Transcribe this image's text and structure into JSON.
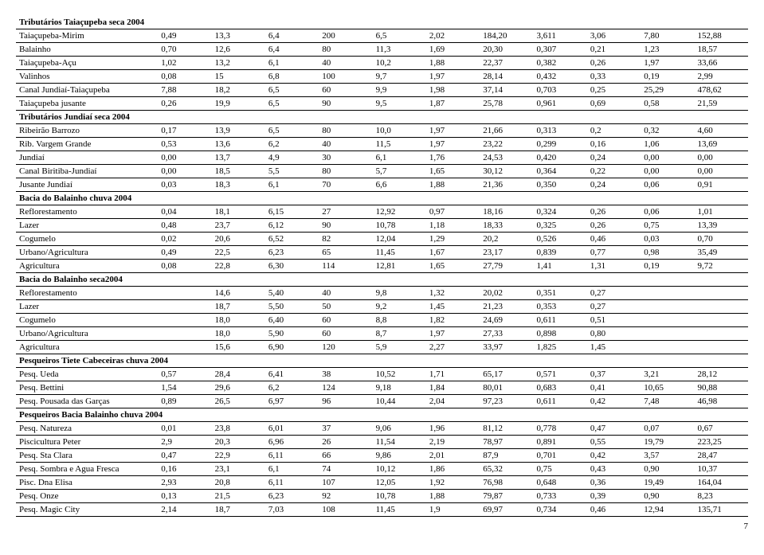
{
  "page_number": "7",
  "sections": [
    {
      "title": "Tributários Taiaçupeba seca 2004",
      "header_class": "section-header",
      "rows": [
        [
          "Taiaçupeba-Mirim",
          "0,49",
          "13,3",
          "6,4",
          "200",
          "6,5",
          "2,02",
          "184,20",
          "3,611",
          "3,06",
          "7,80",
          "152,88"
        ],
        [
          "Balainho",
          "0,70",
          "12,6",
          "6,4",
          "80",
          "11,3",
          "1,69",
          "20,30",
          "0,307",
          "0,21",
          "1,23",
          "18,57"
        ],
        [
          "Taiaçupeba-Açu",
          "1,02",
          "13,2",
          "6,1",
          "40",
          "10,2",
          "1,88",
          "22,37",
          "0,382",
          "0,26",
          "1,97",
          "33,66"
        ],
        [
          "Valinhos",
          "0,08",
          "15",
          "6,8",
          "100",
          "9,7",
          "1,97",
          "28,14",
          "0,432",
          "0,33",
          "0,19",
          "2,99"
        ],
        [
          "Canal Jundiaí-Taiaçupeba",
          "7,88",
          "18,2",
          "6,5",
          "60",
          "9,9",
          "1,98",
          "37,14",
          "0,703",
          "0,25",
          "25,29",
          "478,62"
        ],
        [
          "Taiaçupeba jusante",
          "0,26",
          "19,9",
          "6,5",
          "90",
          "9,5",
          "1,87",
          "25,78",
          "0,961",
          "0,69",
          "0,58",
          "21,59"
        ]
      ]
    },
    {
      "title": "Tributários Jundiaí seca 2004",
      "header_class": "section-header-top",
      "rows": [
        [
          "Ribeirão Barrozo",
          "0,17",
          "13,9",
          "6,5",
          "80",
          "10,0",
          "1,97",
          "21,66",
          "0,313",
          "0,2",
          "0,32",
          "4,60"
        ],
        [
          "Rib. Vargem Grande",
          "0,53",
          "13,6",
          "6,2",
          "40",
          "11,5",
          "1,97",
          "23,22",
          "0,299",
          "0,16",
          "1,06",
          "13,69"
        ],
        [
          "Jundiaí",
          "0,00",
          "13,7",
          "4,9",
          "30",
          "6,1",
          "1,76",
          "24,53",
          "0,420",
          "0,24",
          "0,00",
          "0,00"
        ],
        [
          "Canal Biritiba-Jundiaí",
          "0,00",
          "18,5",
          "5,5",
          "80",
          "5,7",
          "1,65",
          "30,12",
          "0,364",
          "0,22",
          "0,00",
          "0,00"
        ],
        [
          "Jusante Jundiaí",
          "0,03",
          "18,3",
          "6,1",
          "70",
          "6,6",
          "1,88",
          "21,36",
          "0,350",
          "0,24",
          "0,06",
          "0,91"
        ]
      ]
    },
    {
      "title": "Bacia do Balainho chuva 2004",
      "header_class": "section-header-top",
      "rows": [
        [
          "Reflorestamento",
          "0,04",
          "18,1",
          "6,15",
          "27",
          "12,92",
          "0,97",
          "18,16",
          "0,324",
          "0,26",
          "0,06",
          "1,01"
        ],
        [
          "Lazer",
          "0,48",
          "23,7",
          "6,12",
          "90",
          "10,78",
          "1,18",
          "18,33",
          "0,325",
          "0,26",
          "0,75",
          "13,39"
        ],
        [
          "Cogumelo",
          "0,02",
          "20,6",
          "6,52",
          "82",
          "12,04",
          "1,29",
          "20,2",
          "0,526",
          "0,46",
          "0,03",
          "0,70"
        ],
        [
          "Urbano/Agricultura",
          "0,49",
          "22,5",
          "6,23",
          "65",
          "11,45",
          "1,67",
          "23,17",
          "0,839",
          "0,77",
          "0,98",
          "35,49"
        ],
        [
          "Agricultura",
          "0,08",
          "22,8",
          "6,30",
          "114",
          "12,81",
          "1,65",
          "27,79",
          "1,41",
          "1,31",
          "0,19",
          "9,72"
        ]
      ]
    },
    {
      "title": "Bacia do Balainho seca2004",
      "header_class": "section-header-top",
      "rows": [
        [
          "Reflorestamento",
          "",
          "14,6",
          "5,40",
          "40",
          "9,8",
          "1,32",
          "20,02",
          "0,351",
          "0,27",
          "",
          ""
        ],
        [
          "Lazer",
          "",
          "18,7",
          "5,50",
          "50",
          "9,2",
          "1,45",
          "21,23",
          "0,353",
          "0,27",
          "",
          ""
        ],
        [
          "Cogumelo",
          "",
          "18,0",
          "6,40",
          "60",
          "8,8",
          "1,82",
          "24,69",
          "0,611",
          "0,51",
          "",
          ""
        ],
        [
          "Urbano/Agricultura",
          "",
          "18,0",
          "5,90",
          "60",
          "8,7",
          "1,97",
          "27,33",
          "0,898",
          "0,80",
          "",
          ""
        ],
        [
          "Agricultura",
          "",
          "15,6",
          "6,90",
          "120",
          "5,9",
          "2,27",
          "33,97",
          "1,825",
          "1,45",
          "",
          ""
        ]
      ]
    },
    {
      "title": "Pesqueiros Tiete Cabeceiras chuva 2004",
      "header_class": "section-header-top",
      "rows": [
        [
          "Pesq. Ueda",
          "0,57",
          "28,4",
          "6,41",
          "38",
          "10,52",
          "1,71",
          "65,17",
          "0,571",
          "0,37",
          "3,21",
          "28,12"
        ],
        [
          "Pesq. Bettini",
          "1,54",
          "29,6",
          "6,2",
          "124",
          "9,18",
          "1,84",
          "80,01",
          "0,683",
          "0,41",
          "10,65",
          "90,88"
        ],
        [
          "Pesq. Pousada das Garças",
          "0,89",
          "26,5",
          "6,97",
          "96",
          "10,44",
          "2,04",
          "97,23",
          "0,611",
          "0,42",
          "7,48",
          "46,98"
        ]
      ]
    },
    {
      "title": "Pesqueiros Bacia Balainho chuva 2004",
      "header_class": "section-header-top",
      "rows": [
        [
          "Pesq. Natureza",
          "0,01",
          "23,8",
          "6,01",
          "37",
          "9,06",
          "1,96",
          "81,12",
          "0,778",
          "0,47",
          "0,07",
          "0,67"
        ],
        [
          "Piscicultura Peter",
          "2,9",
          "20,3",
          "6,96",
          "26",
          "11,54",
          "2,19",
          "78,97",
          "0,891",
          "0,55",
          "19,79",
          "223,25"
        ],
        [
          "Pesq. Sta Clara",
          "0,47",
          "22,9",
          "6,11",
          "66",
          "9,86",
          "2,01",
          "87,9",
          "0,701",
          "0,42",
          "3,57",
          "28,47"
        ],
        [
          "Pesq. Sombra e Agua Fresca",
          "0,16",
          "23,1",
          "6,1",
          "74",
          "10,12",
          "1,86",
          "65,32",
          "0,75",
          "0,43",
          "0,90",
          "10,37"
        ],
        [
          "Pisc. Dna Elisa",
          "2,93",
          "20,8",
          "6,11",
          "107",
          "12,05",
          "1,92",
          "76,98",
          "0,648",
          "0,36",
          "19,49",
          "164,04"
        ],
        [
          "Pesq. Onze",
          "0,13",
          "21,5",
          "6,23",
          "92",
          "10,78",
          "1,88",
          "79,87",
          "0,733",
          "0,39",
          "0,90",
          "8,23"
        ],
        [
          "Pesq. Magic City",
          "2,14",
          "18,7",
          "7,03",
          "108",
          "11,45",
          "1,9",
          "69,97",
          "0,734",
          "0,46",
          "12,94",
          "135,71"
        ]
      ]
    }
  ]
}
